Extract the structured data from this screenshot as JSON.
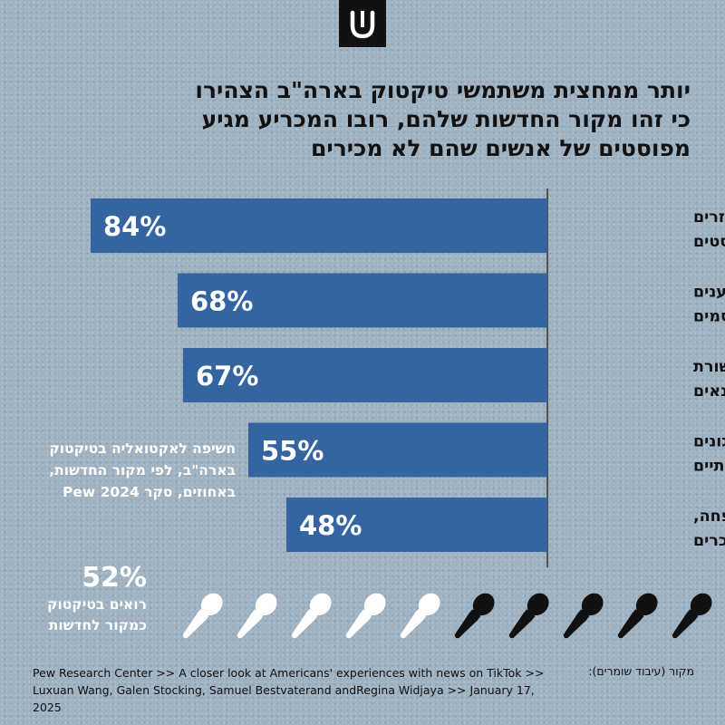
{
  "logo": {
    "icon": "pomegranate-u-logo-icon",
    "background": "#111111",
    "color": "#ffffff"
  },
  "title": {
    "line1": "יותר ממחצית משתמשי טיקטוק בארה\"ב הצהירו",
    "line2": "כי זהו מקור החדשות שלהם, רובו המכריע מגיע",
    "line3": "מפוסטים של אנשים שהם לא מכירים"
  },
  "colors": {
    "bar": "#3465a0",
    "axis": "#333333",
    "title": "#121212",
    "white": "#ffffff",
    "filled_mic": "#111111"
  },
  "chart_data": {
    "type": "bar",
    "orientation": "horizontal",
    "categories": [
      [
        "אנשים זרים",
        "שמעלים פוסטים"
      ],
      [
        "משפיענים",
        "ומפורסמים"
      ],
      [
        "כלי תקשורת",
        "ועיתונאים"
      ],
      [
        "ארגונים",
        "חברתיים"
      ],
      [
        "משפחה,",
        "חברים ומכרים"
      ]
    ],
    "values": [
      84,
      68,
      67,
      55,
      48
    ],
    "value_labels": [
      "84%",
      "68%",
      "67%",
      "55%",
      "48%"
    ],
    "xlim": [
      0,
      100
    ],
    "unit": "%",
    "grid": false
  },
  "side_note": {
    "line1": "חשיפה לאקטואליה בטיקטוק",
    "line2": "בארה\"ב, לפי מקור החדשות,",
    "line3": "באחוזים, סקר Pew 2024"
  },
  "tiktok_news_share": {
    "value": "52%",
    "fraction": 0.52,
    "label_line1": "רואים בטיקטוק",
    "label_line2": "כמקור לחדשות",
    "icon": "microphone-icon",
    "icons_total": 10,
    "icons_filled": 5
  },
  "credit": "מקור (עיבוד שומרים):",
  "source": {
    "line1": "Pew Research Center >> A closer look at Americans' experiences with news on TikTok >>",
    "line2": "Luxuan Wang, Galen Stocking, Samuel Bestvaterand andRegina Widjaya >> January 17, 2025"
  }
}
